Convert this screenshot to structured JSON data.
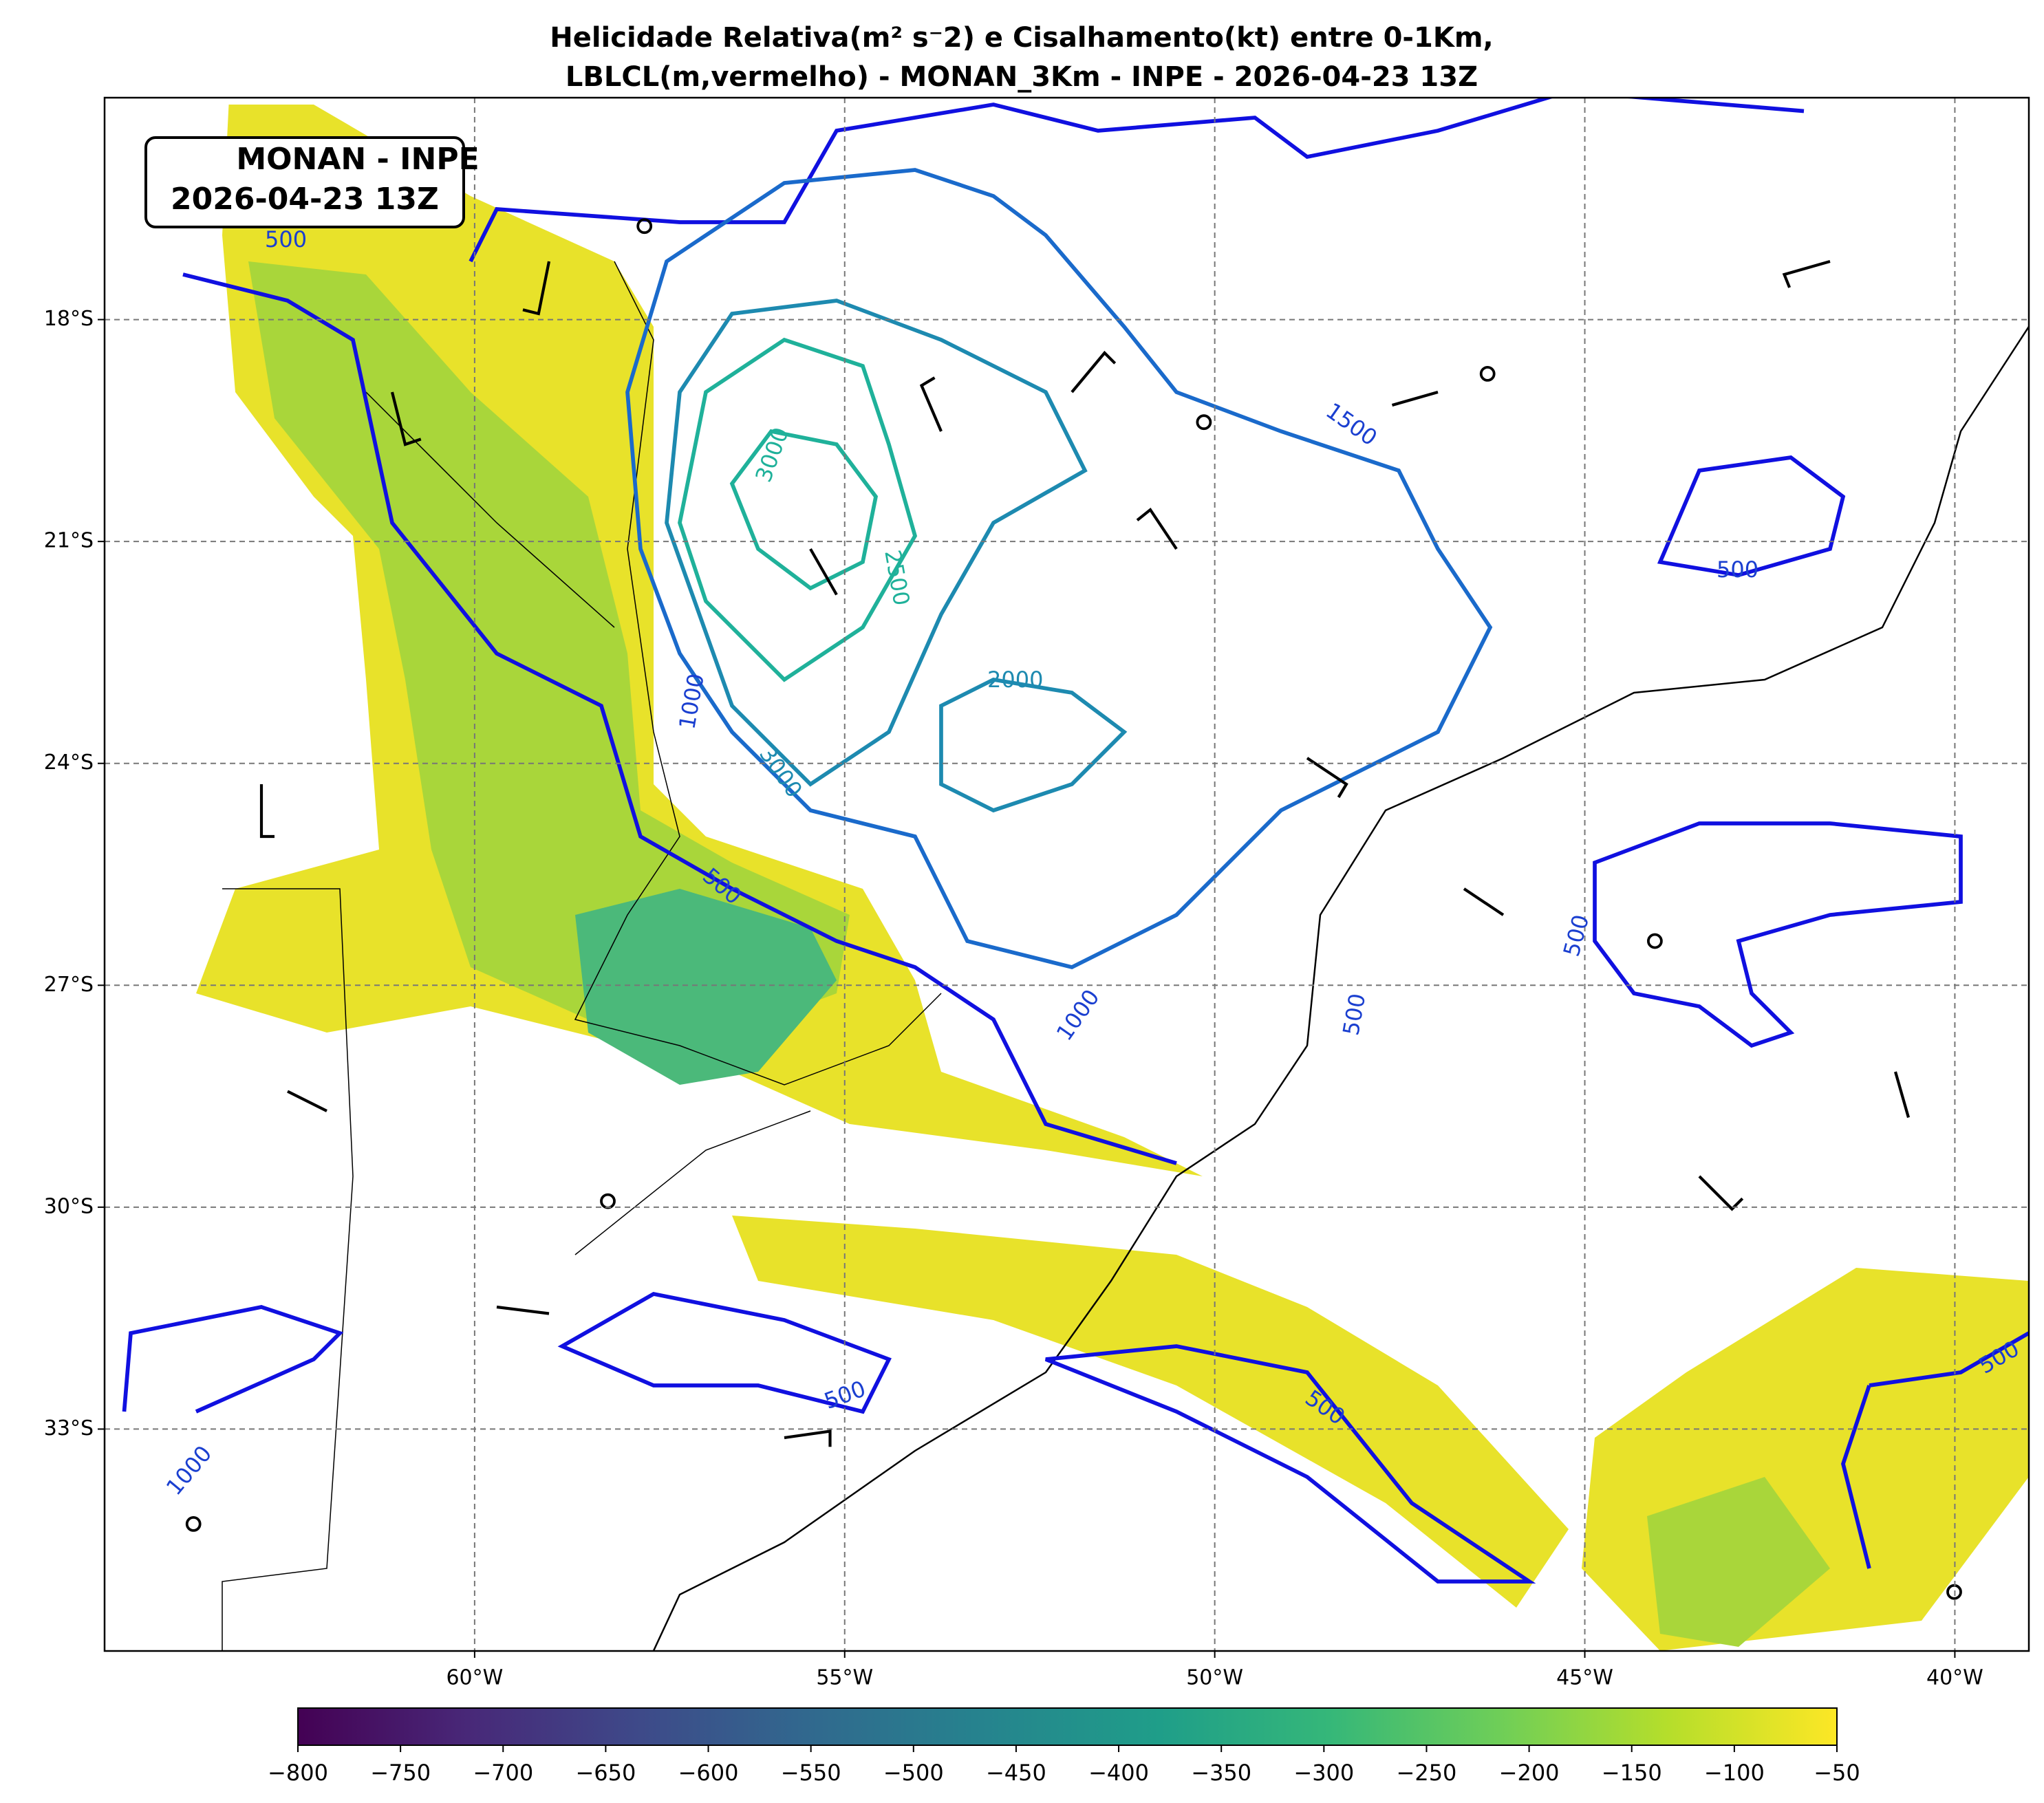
{
  "title": [
    "Helicidade Relativa(m² s⁻2) e Cisalhamento(kt) entre 0-1Km,",
    "LBLCL(m,vermelho) - MONAN_3Km - INPE - 2026-04-23 13Z"
  ],
  "label_box": [
    "MONAN - INPE",
    "2026-04-23 13Z"
  ],
  "map": {
    "lonlim": [
      -65,
      -39
    ],
    "latlim": [
      -36,
      -15
    ],
    "lon_ticks": [
      {
        "value": -60,
        "label": "60°W"
      },
      {
        "value": -55,
        "label": "55°W"
      },
      {
        "value": -50,
        "label": "50°W"
      },
      {
        "value": -45,
        "label": "45°W"
      },
      {
        "value": -40,
        "label": "40°W"
      }
    ],
    "lat_ticks": [
      {
        "value": -18,
        "label": "18°S"
      },
      {
        "value": -21,
        "label": "21°S"
      },
      {
        "value": -24,
        "label": "24°S"
      },
      {
        "value": -27,
        "label": "27°S"
      },
      {
        "value": -30,
        "label": "30°S"
      },
      {
        "value": -33,
        "label": "33°S"
      }
    ],
    "grid": true,
    "contour_labels": [
      "1500",
      "500",
      "2000",
      "3000",
      "2500",
      "1000",
      "3000",
      "500",
      "1000",
      "500",
      "500",
      "500",
      "500",
      "1000",
      "500",
      "500"
    ]
  },
  "colorbar": {
    "lim": [
      -800,
      -50
    ],
    "ticks": [
      {
        "value": -800,
        "label": "−800"
      },
      {
        "value": -750,
        "label": "−750"
      },
      {
        "value": -700,
        "label": "−700"
      },
      {
        "value": -650,
        "label": "−650"
      },
      {
        "value": -600,
        "label": "−600"
      },
      {
        "value": -550,
        "label": "−550"
      },
      {
        "value": -500,
        "label": "−500"
      },
      {
        "value": -450,
        "label": "−450"
      },
      {
        "value": -400,
        "label": "−400"
      },
      {
        "value": -350,
        "label": "−350"
      },
      {
        "value": -300,
        "label": "−300"
      },
      {
        "value": -250,
        "label": "−250"
      },
      {
        "value": -200,
        "label": "−200"
      },
      {
        "value": -150,
        "label": "−150"
      },
      {
        "value": -100,
        "label": "−100"
      },
      {
        "value": -50,
        "label": "−50"
      }
    ]
  }
}
